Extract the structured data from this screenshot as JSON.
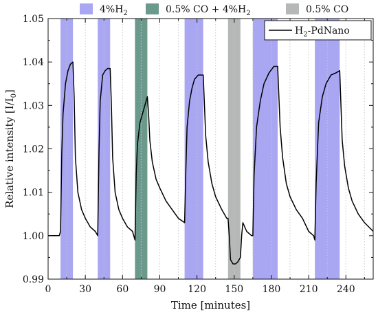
{
  "chart_data": {
    "type": "line",
    "xlabel": "Time [minutes]",
    "ylabel": "Relative intensity [I/I",
    "ylabel_sub": "0",
    "ylabel_end": "]",
    "xlim": [
      0,
      262
    ],
    "ylim": [
      0.99,
      1.05
    ],
    "xticks": [
      0,
      30,
      60,
      90,
      120,
      150,
      180,
      210,
      240
    ],
    "yticks": [
      0.99,
      1.0,
      1.01,
      1.02,
      1.03,
      1.04,
      1.05
    ],
    "ytick_labels": [
      "0.99",
      "1.00",
      "1.01",
      "1.02",
      "1.03",
      "1.04",
      "1.05"
    ],
    "grid": "x-dotted",
    "bands": [
      {
        "type": "h2",
        "x0": 10,
        "x1": 20
      },
      {
        "type": "h2",
        "x0": 40,
        "x1": 50
      },
      {
        "type": "co_h2",
        "x0": 70,
        "x1": 80
      },
      {
        "type": "h2",
        "x0": 110,
        "x1": 125
      },
      {
        "type": "co",
        "x0": 145,
        "x1": 155
      },
      {
        "type": "h2",
        "x0": 165,
        "x1": 185
      },
      {
        "type": "h2",
        "x0": 215,
        "x1": 235
      }
    ],
    "band_colors": {
      "h2": "#a9a6f2",
      "co_h2": "#6b9a8c",
      "co": "#b5b8b6"
    },
    "band_legend": [
      {
        "type": "h2",
        "label": "4%H",
        "sub": "2",
        "label_after": ""
      },
      {
        "type": "co_h2",
        "label": "0.5% CO + 4%H",
        "sub": "2",
        "label_after": ""
      },
      {
        "type": "co",
        "label": "0.5% CO",
        "sub": "",
        "label_after": ""
      }
    ],
    "series": [
      {
        "name": "H",
        "name_sub": "2",
        "name_after": "-PdNano",
        "color": "#000000",
        "x": [
          0,
          5,
          9,
          10,
          11,
          12,
          14,
          16,
          18,
          20,
          21,
          22,
          24,
          27,
          30,
          34,
          38,
          40,
          41,
          42,
          44,
          46,
          48,
          50,
          51,
          52,
          54,
          57,
          60,
          64,
          68,
          69,
          70,
          71,
          72,
          74,
          76,
          78,
          79,
          80,
          81,
          82,
          84,
          87,
          90,
          95,
          100,
          105,
          110,
          111,
          112,
          114,
          116,
          118,
          121,
          123,
          125,
          126,
          127,
          129,
          132,
          135,
          140,
          144,
          145,
          146,
          147,
          149,
          151,
          153,
          155,
          156,
          157,
          160,
          164,
          165,
          166,
          168,
          171,
          174,
          178,
          182,
          185,
          186,
          187,
          189,
          192,
          195,
          200,
          205,
          210,
          214,
          215,
          216,
          218,
          221,
          224,
          228,
          232,
          235,
          236,
          237,
          239,
          242,
          245,
          250,
          255,
          262
        ],
        "y": [
          1.0,
          1.0,
          1.0,
          1.001,
          1.019,
          1.028,
          1.035,
          1.038,
          1.0395,
          1.04,
          1.032,
          1.018,
          1.01,
          1.006,
          1.004,
          1.002,
          1.001,
          1.0,
          1.019,
          1.031,
          1.037,
          1.038,
          1.0385,
          1.0385,
          1.03,
          1.018,
          1.01,
          1.006,
          1.004,
          1.002,
          1.001,
          1.0,
          0.999,
          1.014,
          1.021,
          1.026,
          1.028,
          1.03,
          1.031,
          1.032,
          1.028,
          1.022,
          1.017,
          1.013,
          1.011,
          1.008,
          1.006,
          1.004,
          1.003,
          1.015,
          1.025,
          1.031,
          1.034,
          1.036,
          1.037,
          1.037,
          1.037,
          1.03,
          1.023,
          1.017,
          1.012,
          1.009,
          1.006,
          1.004,
          1.004,
          1.0,
          0.9945,
          0.9935,
          0.9935,
          0.994,
          0.995,
          1.0,
          1.003,
          1.001,
          1.0,
          1.0,
          1.014,
          1.025,
          1.031,
          1.035,
          1.0375,
          1.039,
          1.039,
          1.032,
          1.025,
          1.018,
          1.012,
          1.009,
          1.006,
          1.004,
          1.001,
          1.0,
          0.999,
          1.012,
          1.026,
          1.032,
          1.035,
          1.037,
          1.0375,
          1.038,
          1.03,
          1.022,
          1.016,
          1.011,
          1.008,
          1.005,
          1.003,
          1.001
        ]
      }
    ]
  }
}
